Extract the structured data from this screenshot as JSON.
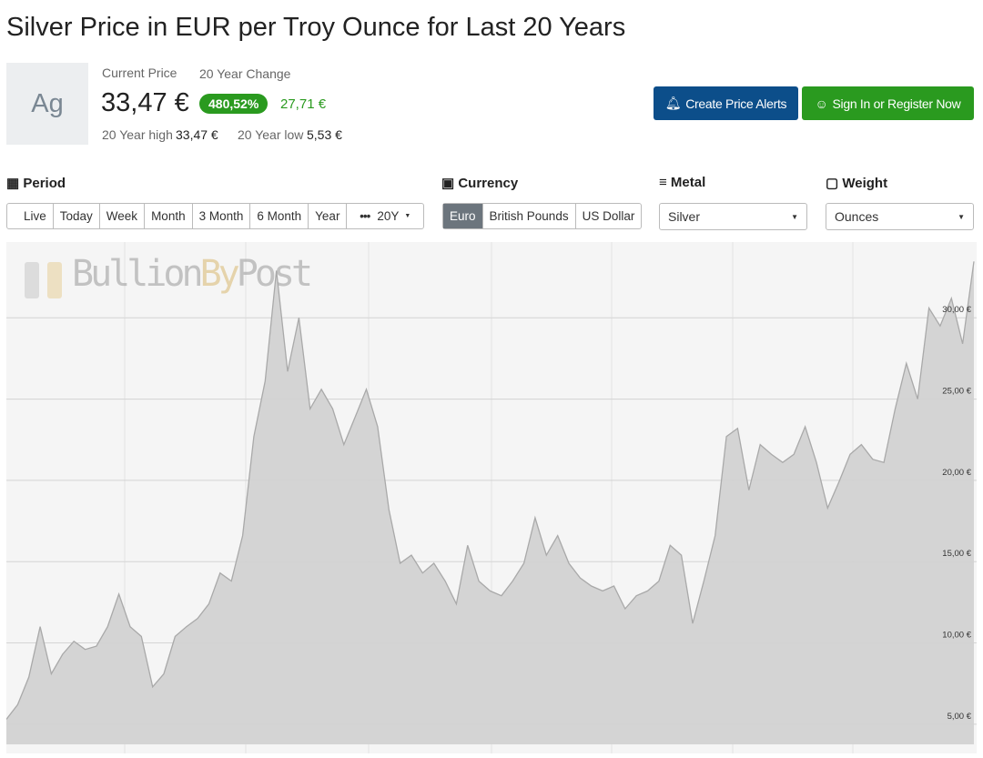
{
  "header": {
    "title": "Silver Price in EUR per Troy Ounce for Last 20 Years"
  },
  "summary": {
    "symbol": "Ag",
    "current_label": "Current Price",
    "change_label": "20 Year Change",
    "price": "33,47 €",
    "change_pct": "480,52%",
    "change_abs": "27,71 €",
    "high_label": "20 Year high",
    "high": "33,47 €",
    "low_label": "20 Year low",
    "low": "5,53 €"
  },
  "actions": {
    "alerts": "Create Price Alerts",
    "signin": "Sign In or Register Now"
  },
  "filters": {
    "period_label": "Period",
    "periods": [
      "Live",
      "Today",
      "Week",
      "Month",
      "3 Month",
      "6 Month",
      "Year"
    ],
    "period_selected": "20Y",
    "currency_label": "Currency",
    "currencies": [
      "Euro",
      "British Pounds",
      "US Dollar"
    ],
    "metal_label": "Metal",
    "metal": "Silver",
    "weight_label": "Weight",
    "weight": "Ounces"
  },
  "watermark": {
    "part1": "Bullion",
    "part2": "By",
    "part3": "Post"
  },
  "chart_data": {
    "type": "area",
    "color": "#d2d2d2",
    "line_color": "#a9a9a9",
    "values": [
      5.3,
      6.2,
      7.9,
      11,
      8.1,
      9.3,
      10.1,
      9.6,
      9.8,
      11,
      13,
      11,
      10.4,
      7.3,
      8.1,
      10.4,
      11,
      11.5,
      12.4,
      14.3,
      13.8,
      16.6,
      22.7,
      26.1,
      32.9,
      26.7,
      30,
      24.4,
      25.6,
      24.4,
      22.2,
      23.9,
      25.6,
      23.3,
      18.2,
      14.9,
      15.4,
      14.3,
      14.9,
      13.8,
      12.4,
      16,
      13.8,
      13.2,
      12.9,
      13.8,
      14.9,
      17.7,
      15.4,
      16.6,
      14.9,
      14,
      13.5,
      13.2,
      13.5,
      12.1,
      12.9,
      13.2,
      13.8,
      16,
      15.4,
      11.2,
      13.8,
      16.6,
      22.7,
      23.2,
      19.4,
      22.2,
      21.6,
      21.1,
      21.6,
      23.3,
      21.1,
      18.3,
      19.9,
      21.6,
      22.2,
      21.3,
      21.1,
      24.4,
      27.2,
      25,
      30.6,
      29.5,
      31.2,
      28.4,
      33.47
    ],
    "ylim": [
      3.76,
      34.66
    ],
    "yticks": [
      {
        "value": 5,
        "label": "5,00 €"
      },
      {
        "value": 10,
        "label": "10,00 €"
      },
      {
        "value": 15,
        "label": "15,00 €"
      },
      {
        "value": 20,
        "label": "20,00 €"
      },
      {
        "value": 25,
        "label": "25,00 €"
      },
      {
        "value": 30,
        "label": "30,00 €"
      }
    ],
    "grid": true
  }
}
